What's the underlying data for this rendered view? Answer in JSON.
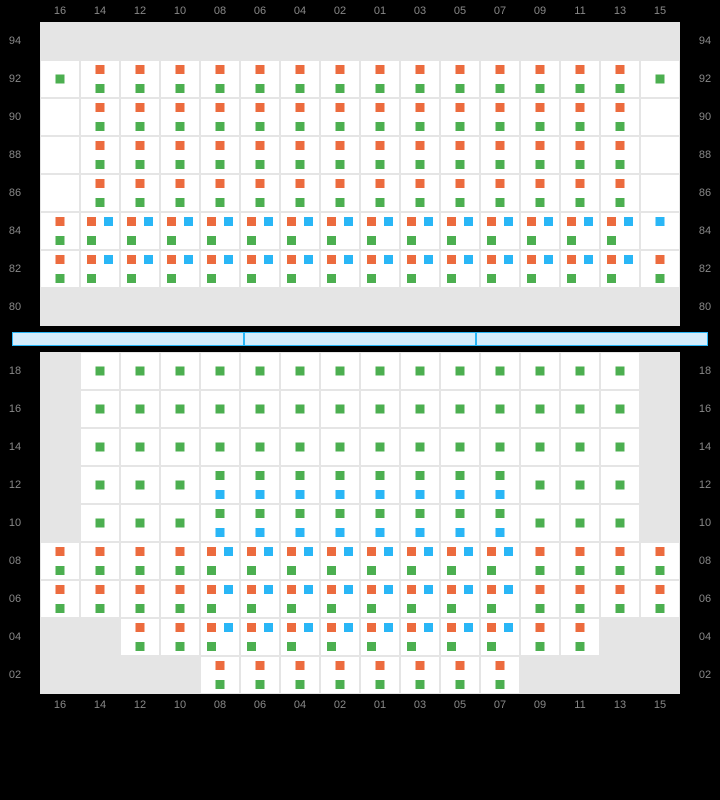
{
  "columns": [
    "16",
    "14",
    "12",
    "10",
    "08",
    "06",
    "04",
    "02",
    "01",
    "03",
    "05",
    "07",
    "09",
    "11",
    "13",
    "15"
  ],
  "colors": {
    "green": "#4caf50",
    "orange": "#ec6b3e",
    "blue": "#29b6f6",
    "inactive": "#e5e5e5",
    "active": "#ffffff",
    "divider_fill": "#d4edfc",
    "divider_border": "#29b6f6"
  },
  "top": {
    "rows": [
      "94",
      "92",
      "90",
      "88",
      "86",
      "84",
      "82",
      "80"
    ],
    "cells": [
      {
        "row": "94",
        "dots": []
      },
      {
        "row": "92",
        "pattern": "first_green",
        "rest": "og"
      },
      {
        "row": "90",
        "pattern": "og"
      },
      {
        "row": "88",
        "pattern": "og"
      },
      {
        "row": "86",
        "pattern": "og"
      },
      {
        "row": "84",
        "pattern": "first_og",
        "rest": "obg"
      },
      {
        "row": "82",
        "pattern": "first_og",
        "rest": "obg",
        "last_og": true
      },
      {
        "row": "80",
        "dots": []
      }
    ]
  },
  "bottom": {
    "rows": [
      "18",
      "16",
      "14",
      "12",
      "10",
      "08",
      "06",
      "04",
      "02"
    ]
  },
  "divider_segments": 3
}
